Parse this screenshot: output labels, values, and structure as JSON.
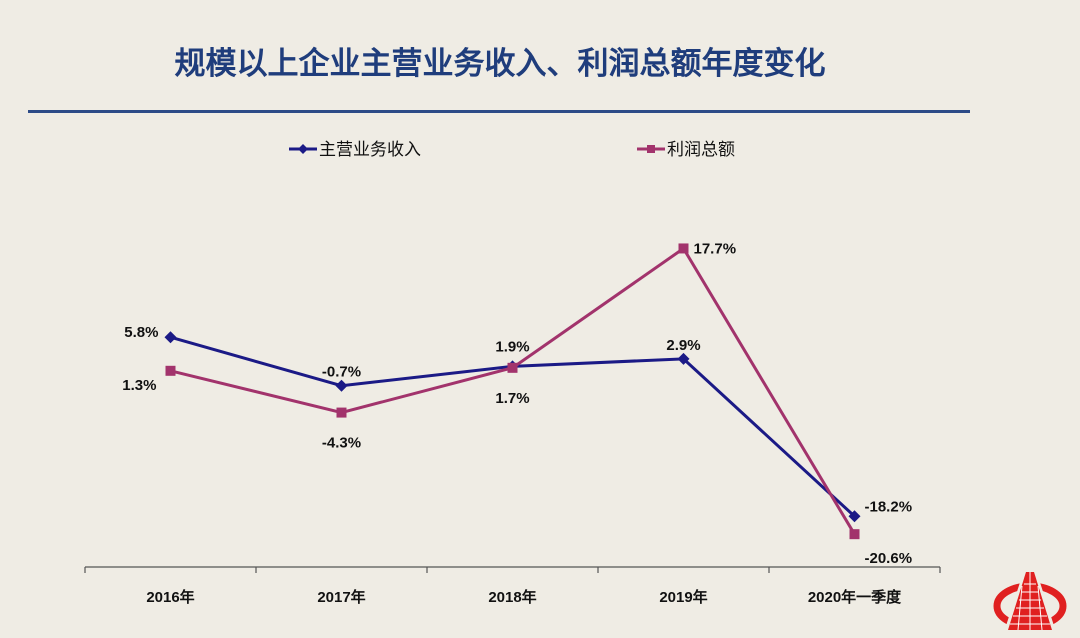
{
  "chart_data": {
    "type": "line",
    "title": "规模以上企业主营业务收入、利润总额年度变化",
    "categories": [
      "2016年",
      "2017年",
      "2018年",
      "2019年",
      "2020年一季度"
    ],
    "ylim": [
      -25,
      25
    ],
    "grid": false,
    "legend": "top",
    "series": [
      {
        "name": "主营业务收入",
        "values": [
          5.8,
          -0.7,
          1.9,
          2.9,
          -18.2
        ],
        "labels": [
          "5.8%",
          "-0.7%",
          "1.9%",
          "2.9%",
          "-18.2%"
        ],
        "color": "#1b1a86",
        "marker": "diamond"
      },
      {
        "name": "利润总额",
        "values": [
          1.3,
          -4.3,
          1.7,
          17.7,
          -20.6
        ],
        "labels": [
          "1.3%",
          "-4.3%",
          "1.7%",
          "17.7%",
          "-20.6%"
        ],
        "color": "#a2336c",
        "marker": "square"
      }
    ]
  },
  "colors": {
    "background": "#efece4",
    "title": "#1f3d7c",
    "rule": "#2d4b87",
    "logo": "#e02020"
  },
  "logo": {
    "icon": "bureau-logo-icon"
  }
}
